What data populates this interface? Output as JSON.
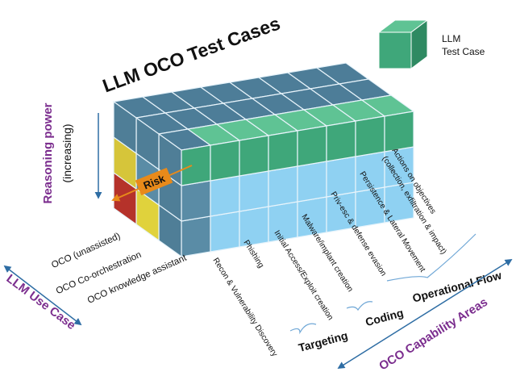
{
  "title": "LLM OCO Test Cases",
  "legend": {
    "lines": [
      "LLM",
      "Test Case"
    ]
  },
  "reasoning": {
    "label": "Reasoning power",
    "sublabel": "(increasing)"
  },
  "risk": "Risk",
  "use_case_axis": "LLM Use Case",
  "use_cases": [
    "OCO (unassisted)",
    "OCO Co-orchestration",
    "OCO knowledge assistant"
  ],
  "capabilities": [
    "Recon & Vulnerability Discovery",
    "Phishing",
    "Initial Access/Exploit creation",
    "Malware/implant creation",
    "Priv-esc & defense evasion",
    "Persistence & Lateral Movement",
    "Actions on objectives",
    "(collection, exfiltration & impact)"
  ],
  "groups": [
    "Targeting",
    "Coding",
    "Operational Flow"
  ],
  "capability_axis": "OCO Capability Areas"
}
